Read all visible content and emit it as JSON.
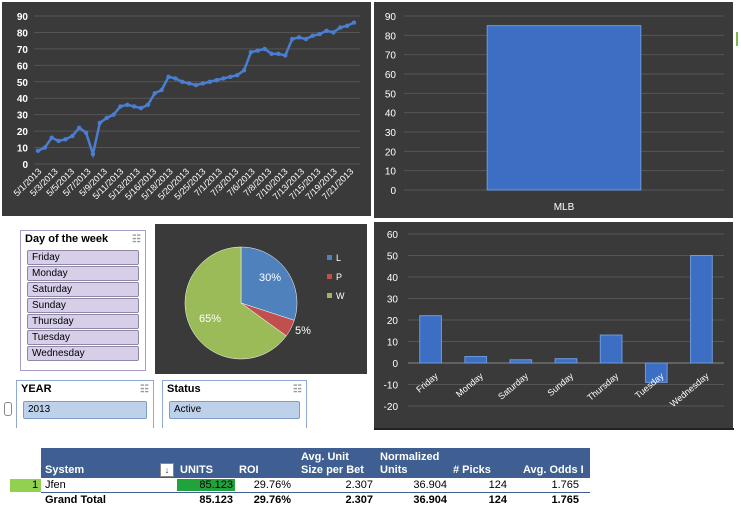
{
  "line_chart": {
    "chart_data": {
      "type": "line",
      "ylim": [
        0,
        90
      ],
      "yticks": [
        0,
        10,
        20,
        30,
        40,
        50,
        60,
        70,
        80,
        90
      ],
      "xtick_labels": [
        "5/1/2013",
        "5/3/2013",
        "5/5/2013",
        "5/7/2013",
        "5/9/2013",
        "5/11/2013",
        "5/13/2013",
        "5/16/2013",
        "5/18/2013",
        "5/20/2013",
        "5/25/2013",
        "7/1/2013",
        "7/3/2013",
        "7/6/2013",
        "7/8/2013",
        "7/10/2013",
        "7/13/2013",
        "7/15/2013",
        "7/19/2013",
        "7/21/2013"
      ],
      "values": [
        8,
        10,
        16,
        14,
        15,
        17,
        22,
        19,
        6,
        25,
        28,
        30,
        35,
        36,
        35,
        34,
        36,
        43,
        45,
        53,
        52,
        50,
        49,
        48,
        49,
        50,
        51,
        52,
        53,
        54,
        57,
        68,
        69,
        70,
        67,
        67,
        66,
        76,
        77,
        76,
        78,
        79,
        81,
        80,
        83,
        84,
        86
      ]
    }
  },
  "bar_chart_mlb": {
    "chart_data": {
      "type": "bar",
      "categories": [
        "MLB"
      ],
      "values": [
        85
      ],
      "ylim": [
        0,
        90
      ],
      "yticks": [
        0,
        10,
        20,
        30,
        40,
        50,
        60,
        70,
        80,
        90
      ]
    }
  },
  "pie_chart": {
    "chart_data": {
      "type": "pie",
      "slices": [
        {
          "name": "L",
          "value": 30,
          "label": "30%",
          "color": "#4f81bd"
        },
        {
          "name": "P",
          "value": 5,
          "label": "5%",
          "color": "#c0504d"
        },
        {
          "name": "W",
          "value": 65,
          "label": "65%",
          "color": "#9bbb59"
        }
      ],
      "legend": [
        "L",
        "P",
        "W"
      ]
    }
  },
  "day_bar_chart": {
    "chart_data": {
      "type": "bar",
      "categories": [
        "Friday",
        "Monday",
        "Saturday",
        "Sunday",
        "Thursday",
        "Tuesday",
        "Wednesday"
      ],
      "values": [
        22,
        3,
        1.5,
        2,
        13,
        -9,
        50
      ],
      "ylim": [
        -20,
        60
      ],
      "yticks": [
        -20,
        -10,
        0,
        10,
        20,
        30,
        40,
        50,
        60
      ]
    }
  },
  "slicers": {
    "day_of_week": {
      "title": "Day of the week",
      "items": [
        "Friday",
        "Monday",
        "Saturday",
        "Sunday",
        "Thursday",
        "Tuesday",
        "Wednesday"
      ]
    },
    "year": {
      "title": "YEAR",
      "items": [
        "2013"
      ]
    },
    "status": {
      "title": "Status",
      "items": [
        "Active"
      ]
    }
  },
  "pivot": {
    "headers": {
      "system": "System",
      "units": "UNITS",
      "roi": "ROI",
      "avg_unit_line1": "Avg. Unit",
      "avg_unit_line2": "Size per Bet",
      "normalized_line1": "Normalized",
      "normalized_line2": "Units",
      "picks": "# Picks",
      "avg_odds": "Avg. Odds I"
    },
    "row": {
      "rank": "1",
      "system": "Jfen",
      "units": "85.123",
      "roi": "29.76%",
      "avg_unit": "2.307",
      "normalized": "36.904",
      "picks": "124",
      "avg_odds": "1.765"
    },
    "total": {
      "label": "Grand Total",
      "units": "85.123",
      "roi": "29.76%",
      "avg_unit": "2.307",
      "normalized": "36.904",
      "picks": "124",
      "avg_odds": "1.765"
    }
  },
  "colors": {
    "bar": "#3c6fc4",
    "line": "#4a7ed1",
    "panel_bg": "#3a3a3a",
    "pivot_header": "#3f5e91",
    "units_highlight": "#21a33b",
    "row_marker": "#92d050"
  }
}
